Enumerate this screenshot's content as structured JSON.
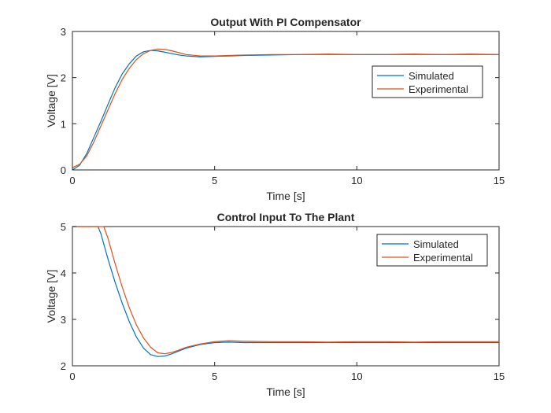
{
  "chart_data": [
    {
      "type": "line",
      "title": "Output With PI Compensator",
      "xlabel": "Time [s]",
      "ylabel": "Voltage [V]",
      "xlim": [
        0,
        15
      ],
      "ylim": [
        0,
        3
      ],
      "xticks": [
        "0",
        "5",
        "10",
        "15"
      ],
      "yticks": [
        "0",
        "1",
        "2",
        "3"
      ],
      "grid": false,
      "legend": "right",
      "series": [
        {
          "name": "Simulated",
          "color": "#0072BD",
          "x": [
            0,
            0.25,
            0.5,
            0.75,
            1.0,
            1.25,
            1.5,
            1.75,
            2.0,
            2.25,
            2.5,
            2.75,
            3.0,
            3.25,
            3.5,
            3.75,
            4.0,
            4.5,
            5.0,
            5.5,
            6.0,
            7.0,
            8.0,
            9.0,
            10.0,
            11.0,
            12.0,
            13.0,
            14.0,
            15.0
          ],
          "y": [
            0.0,
            0.1,
            0.35,
            0.7,
            1.05,
            1.42,
            1.78,
            2.08,
            2.3,
            2.47,
            2.56,
            2.59,
            2.58,
            2.55,
            2.52,
            2.49,
            2.47,
            2.45,
            2.46,
            2.47,
            2.48,
            2.49,
            2.5,
            2.5,
            2.5,
            2.5,
            2.5,
            2.5,
            2.5,
            2.5
          ]
        },
        {
          "name": "Experimental",
          "color": "#D95319",
          "x": [
            0,
            0.25,
            0.5,
            0.75,
            1.0,
            1.25,
            1.5,
            1.75,
            2.0,
            2.25,
            2.5,
            2.75,
            3.0,
            3.25,
            3.5,
            3.75,
            4.0,
            4.5,
            5.0,
            5.5,
            6.0,
            7.0,
            8.0,
            9.0,
            10.0,
            11.0,
            12.0,
            13.0,
            14.0,
            15.0
          ],
          "y": [
            0.05,
            0.12,
            0.3,
            0.6,
            0.95,
            1.3,
            1.65,
            1.96,
            2.2,
            2.39,
            2.52,
            2.59,
            2.62,
            2.61,
            2.58,
            2.54,
            2.5,
            2.47,
            2.47,
            2.48,
            2.49,
            2.5,
            2.5,
            2.51,
            2.5,
            2.5,
            2.51,
            2.5,
            2.51,
            2.5
          ]
        }
      ]
    },
    {
      "type": "line",
      "title": "Control Input To The Plant",
      "xlabel": "Time [s]",
      "ylabel": "Voltage [V]",
      "xlim": [
        0,
        15
      ],
      "ylim": [
        2,
        5
      ],
      "xticks": [
        "0",
        "5",
        "10",
        "15"
      ],
      "yticks": [
        "2",
        "3",
        "4",
        "5"
      ],
      "grid": false,
      "legend": "top-right",
      "series": [
        {
          "name": "Simulated",
          "color": "#0072BD",
          "x": [
            0,
            0.5,
            0.9,
            1.0,
            1.25,
            1.5,
            1.75,
            2.0,
            2.25,
            2.5,
            2.75,
            3.0,
            3.25,
            3.5,
            3.75,
            4.0,
            4.5,
            5.0,
            5.5,
            6.0,
            7.0,
            8.0,
            9.0,
            10.0,
            11.0,
            12.0,
            13.0,
            14.0,
            15.0
          ],
          "y": [
            5.0,
            5.0,
            5.0,
            4.85,
            4.3,
            3.8,
            3.35,
            2.95,
            2.62,
            2.38,
            2.24,
            2.2,
            2.21,
            2.26,
            2.32,
            2.38,
            2.46,
            2.5,
            2.51,
            2.5,
            2.5,
            2.5,
            2.5,
            2.5,
            2.5,
            2.5,
            2.5,
            2.5,
            2.5
          ]
        },
        {
          "name": "Experimental",
          "color": "#D95319",
          "x": [
            0,
            0.5,
            1.0,
            1.1,
            1.25,
            1.5,
            1.75,
            2.0,
            2.25,
            2.5,
            2.75,
            3.0,
            3.25,
            3.5,
            3.75,
            4.0,
            4.5,
            5.0,
            5.5,
            6.0,
            7.0,
            8.0,
            9.0,
            10.0,
            11.0,
            12.0,
            13.0,
            14.0,
            15.0
          ],
          "y": [
            5.0,
            5.0,
            5.0,
            5.0,
            4.75,
            4.2,
            3.7,
            3.25,
            2.88,
            2.6,
            2.4,
            2.28,
            2.26,
            2.29,
            2.34,
            2.4,
            2.47,
            2.52,
            2.54,
            2.53,
            2.52,
            2.52,
            2.51,
            2.52,
            2.52,
            2.51,
            2.52,
            2.52,
            2.52
          ]
        }
      ]
    }
  ]
}
